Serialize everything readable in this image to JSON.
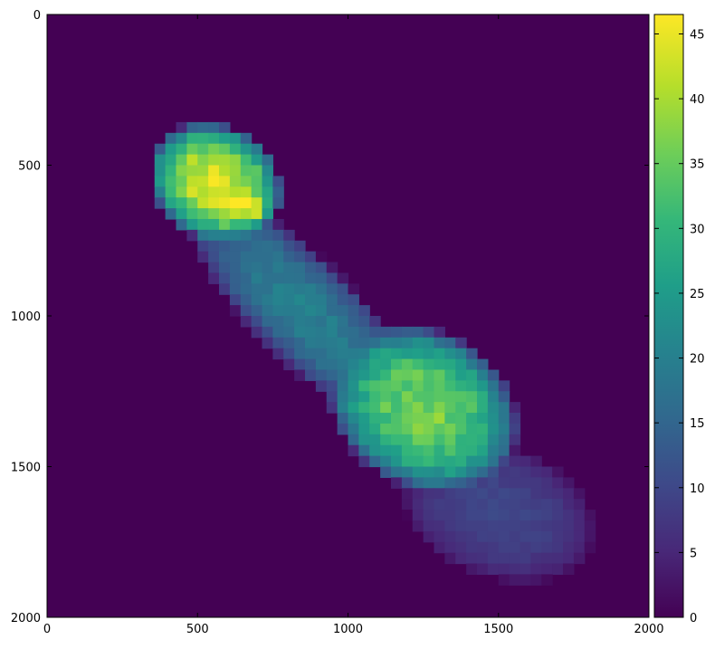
{
  "chart_data": {
    "type": "heatmap",
    "title": "",
    "xlabel": "",
    "ylabel": "",
    "xlim": [
      0,
      2000
    ],
    "ylim": [
      2000,
      0
    ],
    "x_ticks": [
      "0",
      "500",
      "1000",
      "1500",
      "2000"
    ],
    "y_ticks": [
      "0",
      "500",
      "1000",
      "1500",
      "2000"
    ],
    "colormap": "viridis",
    "colorbar": {
      "min": 0,
      "max": 46.5,
      "ticks": [
        "0",
        "5",
        "10",
        "15",
        "20",
        "25",
        "30",
        "35",
        "40",
        "45"
      ]
    },
    "grid": false,
    "blobs": [
      {
        "center": [
          560,
          560
        ],
        "radii": [
          230,
          190
        ],
        "rotation_deg": 30,
        "peak": 44
      },
      {
        "center": [
          650,
          630
        ],
        "radii": [
          110,
          80
        ],
        "rotation_deg": 20,
        "peak": 46
      },
      {
        "center": [
          1250,
          1310
        ],
        "radii": [
          330,
          260
        ],
        "rotation_deg": 30,
        "peak": 37
      },
      {
        "center": [
          1500,
          1650
        ],
        "radii": [
          330,
          220
        ],
        "rotation_deg": 20,
        "peak": 10
      },
      {
        "center": [
          850,
          980
        ],
        "radii": [
          520,
          170
        ],
        "rotation_deg": 45,
        "peak": 20
      }
    ]
  }
}
